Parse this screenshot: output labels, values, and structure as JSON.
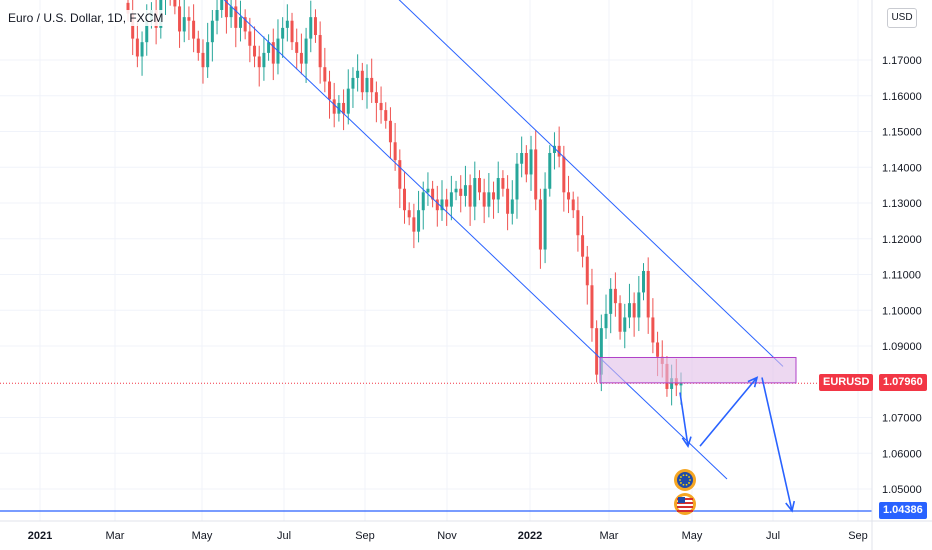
{
  "header": {
    "symbol_title": "Euro / U.S. Dollar, 1D, FXCM",
    "currency": "USD"
  },
  "badges": {
    "symbol": "EURUSD",
    "last_price": "1.07960",
    "hline_price": "1.04386"
  },
  "colors": {
    "up": "#26a69a",
    "down": "#ef5350",
    "drawing": "#2962ff",
    "zone_fill": "#e1bee7",
    "zone_border": "#b040c8",
    "last_line": "#f23645"
  },
  "icons": [
    "eu-flag-icon",
    "us-flag-icon"
  ],
  "chart_data": {
    "type": "candlestick",
    "title": "Euro / U.S. Dollar, 1D, FXCM",
    "x_tick_labels": [
      "2021",
      "Mar",
      "May",
      "Jul",
      "Sep",
      "Nov",
      "2022",
      "Mar",
      "May",
      "Jul",
      "Sep"
    ],
    "y_tick_labels": [
      "1.17000",
      "1.16000",
      "1.15000",
      "1.14000",
      "1.13000",
      "1.12000",
      "1.11000",
      "1.10000",
      "1.09000",
      "1.07000",
      "1.06000",
      "1.05000"
    ],
    "ylim": [
      1.0405,
      1.1845
    ],
    "last_price": 1.0796,
    "horizontal_line": 1.04386,
    "series": [
      {
        "name": "EURUSD",
        "close": [
          1.183,
          1.176,
          1.171,
          1.175,
          1.181,
          1.184,
          1.179,
          1.188,
          1.191,
          1.189,
          1.185,
          1.178,
          1.182,
          1.181,
          1.176,
          1.172,
          1.168,
          1.175,
          1.181,
          1.184,
          1.188,
          1.182,
          1.185,
          1.179,
          1.182,
          1.178,
          1.174,
          1.171,
          1.168,
          1.172,
          1.175,
          1.169,
          1.176,
          1.179,
          1.181,
          1.175,
          1.172,
          1.169,
          1.176,
          1.182,
          1.177,
          1.168,
          1.164,
          1.159,
          1.155,
          1.158,
          1.155,
          1.162,
          1.165,
          1.167,
          1.161,
          1.165,
          1.161,
          1.158,
          1.156,
          1.153,
          1.147,
          1.142,
          1.134,
          1.128,
          1.126,
          1.122,
          1.128,
          1.133,
          1.134,
          1.131,
          1.128,
          1.131,
          1.129,
          1.133,
          1.134,
          1.132,
          1.135,
          1.129,
          1.137,
          1.133,
          1.129,
          1.133,
          1.131,
          1.137,
          1.134,
          1.127,
          1.131,
          1.141,
          1.144,
          1.138,
          1.145,
          1.131,
          1.117,
          1.134,
          1.144,
          1.146,
          1.143,
          1.133,
          1.131,
          1.128,
          1.121,
          1.115,
          1.107,
          1.095,
          1.082,
          1.095,
          1.099,
          1.106,
          1.102,
          1.094,
          1.098,
          1.102,
          1.098,
          1.105,
          1.111,
          1.098,
          1.091,
          1.087,
          1.085,
          1.078,
          1.081,
          1.079,
          1.0796
        ]
      }
    ],
    "annotations": [
      {
        "type": "channel",
        "desc": "descending parallel channel",
        "color": "#2962ff"
      },
      {
        "type": "zone",
        "desc": "support zone",
        "range": [
          1.0797,
          1.0868
        ]
      },
      {
        "type": "path",
        "desc": "projected zigzag arrow",
        "points": [
          1.077,
          1.062,
          1.081,
          1.0439
        ]
      }
    ]
  }
}
